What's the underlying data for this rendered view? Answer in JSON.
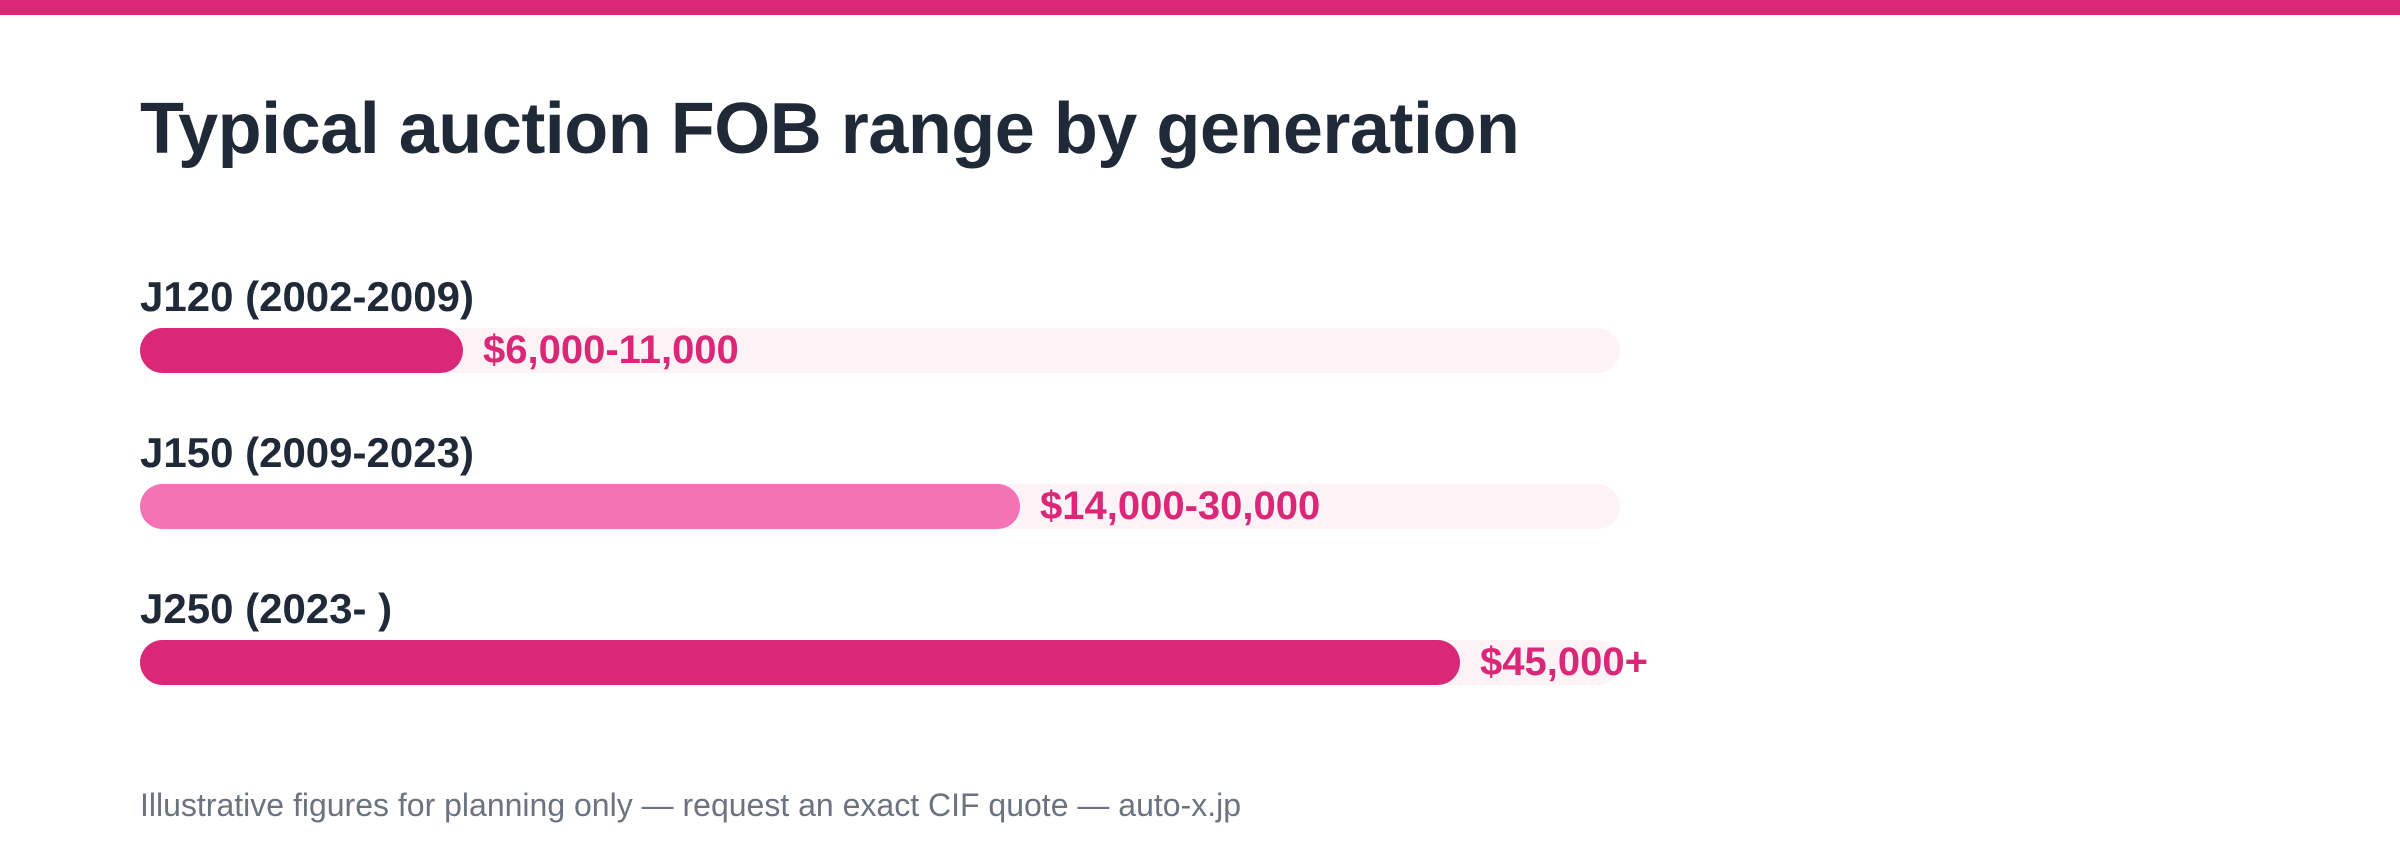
{
  "colors": {
    "accent": "#db2777",
    "accent_light": "#f472b6",
    "track": "#fdf3f7",
    "text_dark": "#1f2937",
    "text_muted": "#6b7280"
  },
  "title": "Typical auction FOB range by generation",
  "footnote": "Illustrative figures for planning only — request an exact CIF quote — auto-x.jp",
  "chart_data": {
    "type": "bar",
    "orientation": "horizontal",
    "title": "Typical auction FOB range by generation",
    "categories": [
      "J120 (2002-2009)",
      "J150 (2009-2023)",
      "J250 (2023- )"
    ],
    "value_labels": [
      "$6,000-11,000",
      "$14,000-30,000",
      "$45,000+"
    ],
    "values": [
      11000,
      30000,
      45000
    ],
    "bar_colors": [
      "#db2777",
      "#f472b6",
      "#db2777"
    ],
    "xlim": [
      0,
      50000
    ],
    "grid": false,
    "legend": "none"
  }
}
